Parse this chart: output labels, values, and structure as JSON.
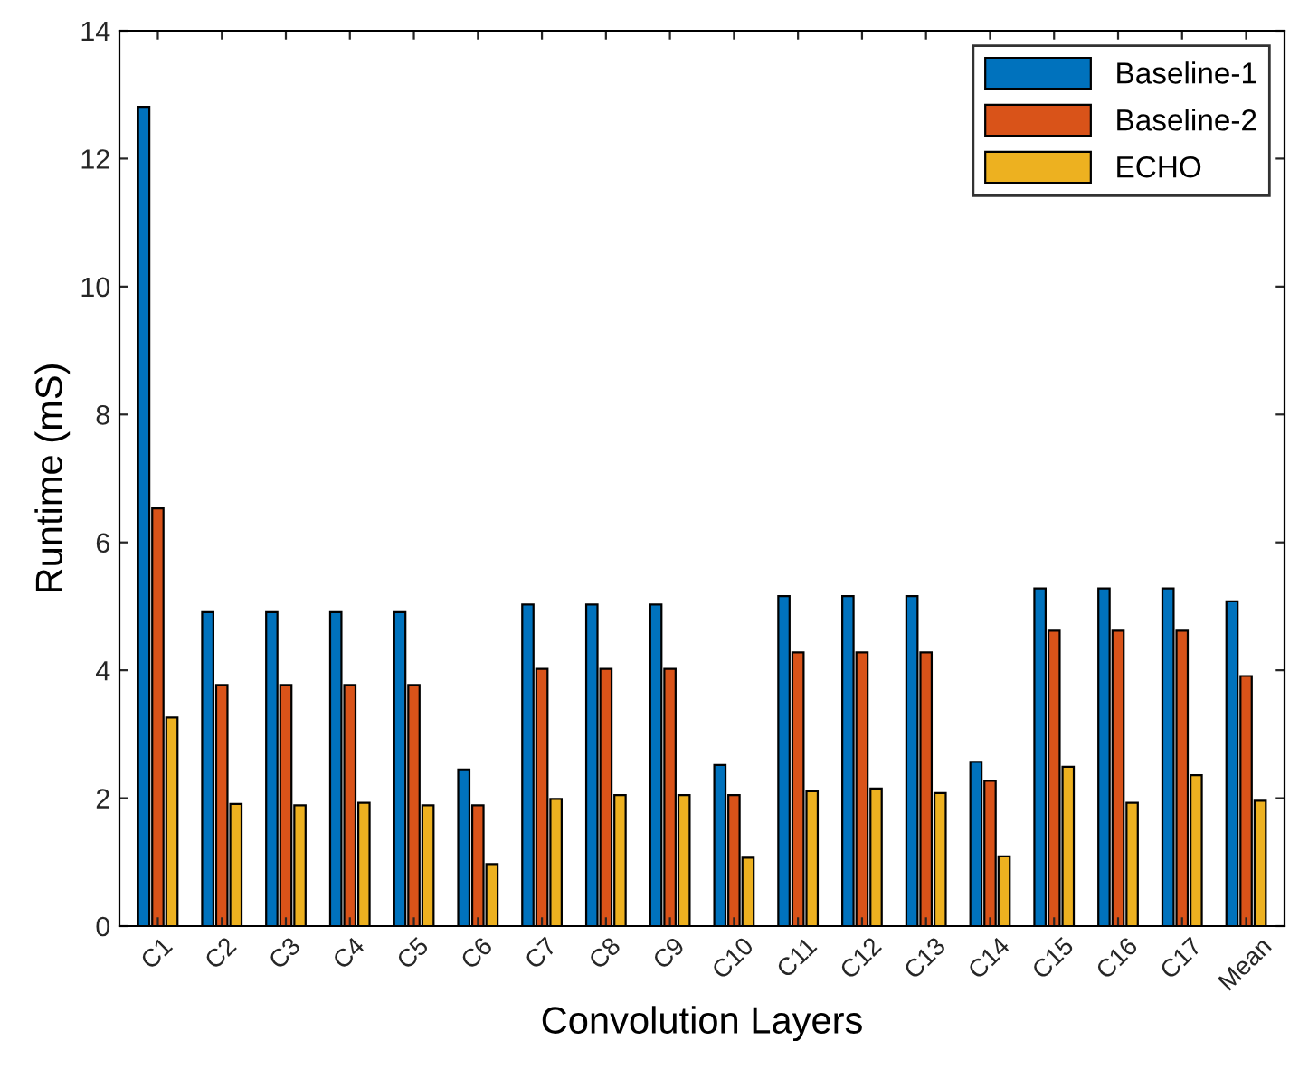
{
  "chart_data": {
    "type": "bar",
    "xlabel": "Convolution Layers",
    "ylabel": "Runtime (mS)",
    "categories": [
      "C1",
      "C2",
      "C3",
      "C4",
      "C5",
      "C6",
      "C7",
      "C8",
      "C9",
      "C10",
      "C11",
      "C12",
      "C13",
      "C14",
      "C15",
      "C16",
      "C17",
      "Mean"
    ],
    "series": [
      {
        "name": "Baseline-1",
        "color": "#0072bd",
        "values": [
          12.81,
          4.91,
          4.91,
          4.91,
          4.91,
          2.45,
          5.03,
          5.03,
          5.03,
          2.52,
          5.16,
          5.16,
          5.16,
          2.57,
          5.28,
          5.28,
          5.28,
          5.08
        ]
      },
      {
        "name": "Baseline-2",
        "color": "#d95319",
        "values": [
          6.53,
          3.77,
          3.77,
          3.77,
          3.77,
          1.89,
          4.02,
          4.02,
          4.02,
          2.05,
          4.28,
          4.28,
          4.28,
          2.27,
          4.62,
          4.62,
          4.62,
          3.91
        ]
      },
      {
        "name": "ECHO",
        "color": "#edb120",
        "values": [
          3.26,
          1.91,
          1.89,
          1.93,
          1.89,
          0.97,
          1.99,
          2.05,
          2.05,
          1.07,
          2.11,
          2.15,
          2.08,
          1.09,
          2.49,
          1.93,
          2.36,
          1.96
        ]
      }
    ],
    "ylim": [
      0,
      14
    ],
    "yticks": [
      0,
      2,
      4,
      6,
      8,
      10,
      12,
      14
    ],
    "grid": false,
    "legend": "top right"
  }
}
